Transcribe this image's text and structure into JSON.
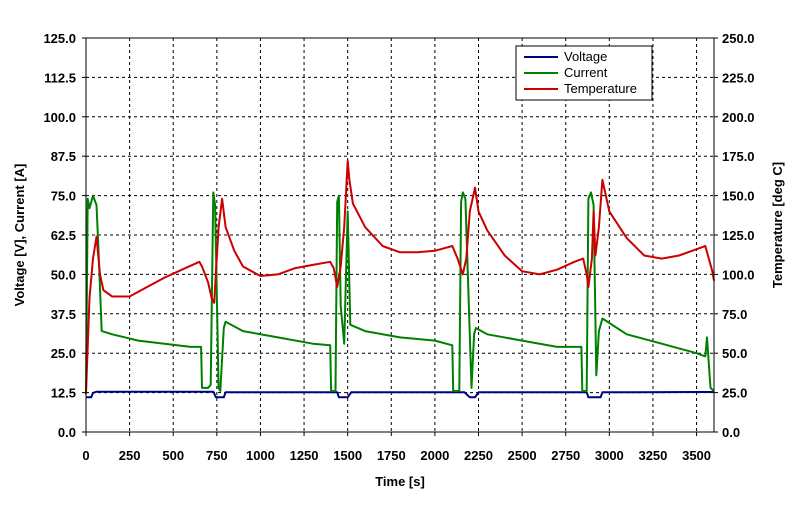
{
  "chart_data": {
    "type": "line",
    "title": "",
    "xlabel": "Time [s]",
    "ylabel_left": "Voltage [V], Current [A]",
    "ylabel_right": "Temperature [deg C]",
    "xlim": [
      0,
      3600
    ],
    "ylim_left": [
      0,
      125
    ],
    "ylim_right": [
      0,
      250
    ],
    "x_ticks": [
      0,
      250,
      500,
      750,
      1000,
      1250,
      1500,
      1750,
      2000,
      2250,
      2500,
      2750,
      3000,
      3250,
      3500
    ],
    "x_tick_labels": [
      "0",
      "250",
      "500",
      "750",
      "1000",
      "1250",
      "1500",
      "1750",
      "2000",
      "2250",
      "2500",
      "2750",
      "3000",
      "3250",
      "3500"
    ],
    "y_left_ticks": [
      0,
      12.5,
      25,
      37.5,
      50,
      62.5,
      75,
      87.5,
      100,
      112.5,
      125
    ],
    "y_left_tick_labels": [
      "0.0",
      "12.5",
      "25.0",
      "37.5",
      "50.0",
      "62.5",
      "75.0",
      "87.5",
      "100.0",
      "112.5",
      "125.0"
    ],
    "y_right_ticks": [
      0,
      25,
      50,
      75,
      100,
      125,
      150,
      175,
      200,
      225,
      250
    ],
    "y_right_tick_labels": [
      "0.0",
      "25.0",
      "50.0",
      "75.0",
      "100.0",
      "125.0",
      "150.0",
      "175.0",
      "200.0",
      "225.0",
      "250.0"
    ],
    "grid": true,
    "legend_position": "top-right",
    "series": [
      {
        "name": "Voltage",
        "axis": "left",
        "color": "#000080",
        "x": [
          0,
          30,
          40,
          60,
          700,
          730,
          745,
          760,
          790,
          800,
          1400,
          1440,
          1450,
          1470,
          1500,
          1520,
          2150,
          2170,
          2200,
          2220,
          2230,
          2250,
          2850,
          2870,
          2880,
          2900,
          2950,
          2960,
          3500,
          3600
        ],
        "y": [
          11,
          11,
          12.4,
          12.8,
          12.8,
          12.8,
          11,
          11,
          11,
          12.6,
          12.6,
          12.6,
          11,
          11,
          11,
          12.6,
          12.6,
          12.6,
          11,
          11,
          11,
          12.6,
          12.6,
          12.6,
          11,
          11,
          11,
          12.6,
          12.7,
          12.7
        ]
      },
      {
        "name": "Current",
        "axis": "left",
        "color": "#008000",
        "x": [
          0,
          10,
          20,
          40,
          60,
          70,
          90,
          150,
          300,
          450,
          600,
          660,
          665,
          700,
          715,
          730,
          740,
          760,
          770,
          790,
          800,
          900,
          1100,
          1300,
          1400,
          1405,
          1430,
          1440,
          1450,
          1460,
          1480,
          1500,
          1515,
          1600,
          1800,
          2000,
          2100,
          2105,
          2140,
          2150,
          2160,
          2175,
          2210,
          2225,
          2235,
          2300,
          2500,
          2700,
          2800,
          2840,
          2845,
          2870,
          2880,
          2895,
          2910,
          2925,
          2940,
          2960,
          3100,
          3300,
          3500,
          3550,
          3560,
          3580,
          3600
        ],
        "y": [
          12,
          74,
          71,
          75,
          72,
          60,
          32,
          31,
          29,
          28,
          27,
          27,
          14,
          14,
          15,
          76,
          72,
          14,
          13,
          33,
          35,
          32,
          30,
          28,
          27.5,
          13,
          13,
          73,
          75,
          40,
          28,
          70,
          34,
          32,
          30,
          29,
          27.5,
          13,
          13,
          73,
          76,
          74,
          14,
          31,
          33,
          31,
          29,
          27,
          27,
          27,
          13,
          13,
          74,
          76,
          72,
          18,
          32,
          36,
          31,
          28,
          25,
          24,
          30,
          14,
          13
        ]
      },
      {
        "name": "Temperature",
        "axis": "right",
        "color": "#cc0000",
        "x": [
          0,
          20,
          40,
          60,
          80,
          100,
          150,
          250,
          350,
          450,
          550,
          650,
          665,
          700,
          720,
          735,
          745,
          760,
          780,
          800,
          850,
          900,
          1000,
          1100,
          1200,
          1300,
          1400,
          1420,
          1440,
          1460,
          1480,
          1500,
          1510,
          1530,
          1600,
          1700,
          1800,
          1900,
          2000,
          2100,
          2130,
          2160,
          2180,
          2200,
          2220,
          2230,
          2250,
          2300,
          2400,
          2500,
          2600,
          2700,
          2800,
          2850,
          2870,
          2880,
          2900,
          2910,
          2920,
          2940,
          2960,
          3000,
          3100,
          3200,
          3300,
          3400,
          3500,
          3550,
          3570,
          3590,
          3600
        ],
        "y": [
          25,
          85,
          110,
          124,
          100,
          90,
          86,
          86,
          92,
          98,
          103,
          108,
          105,
          95,
          85,
          82,
          102,
          130,
          148,
          130,
          115,
          105,
          99,
          100,
          104,
          106,
          108,
          104,
          92,
          105,
          130,
          172,
          160,
          145,
          130,
          118,
          114,
          114,
          115,
          118,
          110,
          100,
          110,
          140,
          150,
          155,
          140,
          128,
          112,
          102,
          100,
          103,
          108,
          110,
          100,
          92,
          110,
          140,
          112,
          130,
          160,
          140,
          123,
          112,
          110,
          112,
          116,
          118,
          110,
          102,
          96
        ]
      }
    ]
  }
}
